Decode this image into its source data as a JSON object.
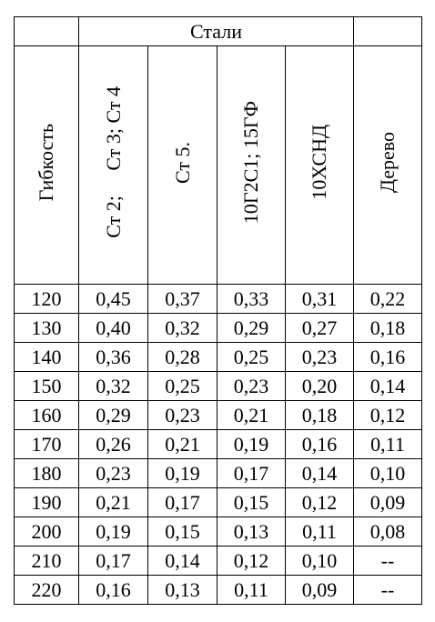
{
  "table": {
    "group_header": "Стали",
    "columns": [
      "Гибкость",
      "Ст 2;     Ст 3; Ст 4",
      "Ст 5.",
      "10Г2С1; 15ГФ",
      "10ХСНД",
      "Дерево"
    ],
    "rows": [
      [
        "120",
        "0,45",
        "0,37",
        "0,33",
        "0,31",
        "0,22"
      ],
      [
        "130",
        "0,40",
        "0,32",
        "0,29",
        "0,27",
        "0,18"
      ],
      [
        "140",
        "0,36",
        "0,28",
        "0,25",
        "0,23",
        "0,16"
      ],
      [
        "150",
        "0,32",
        "0,25",
        "0,23",
        "0,20",
        "0,14"
      ],
      [
        "160",
        "0,29",
        "0,23",
        "0,21",
        "0,18",
        "0,12"
      ],
      [
        "170",
        "0,26",
        "0,21",
        "0,19",
        "0,16",
        "0,11"
      ],
      [
        "180",
        "0,23",
        "0,19",
        "0,17",
        "0,14",
        "0,10"
      ],
      [
        "190",
        "0,21",
        "0,17",
        "0,15",
        "0,12",
        "0,09"
      ],
      [
        "200",
        "0,19",
        "0,15",
        "0,13",
        "0,11",
        "0,08"
      ],
      [
        "210",
        "0,17",
        "0,14",
        "0,12",
        "0,10",
        "--"
      ],
      [
        "220",
        "0,16",
        "0,13",
        "0,11",
        "0,09",
        "--"
      ]
    ]
  }
}
